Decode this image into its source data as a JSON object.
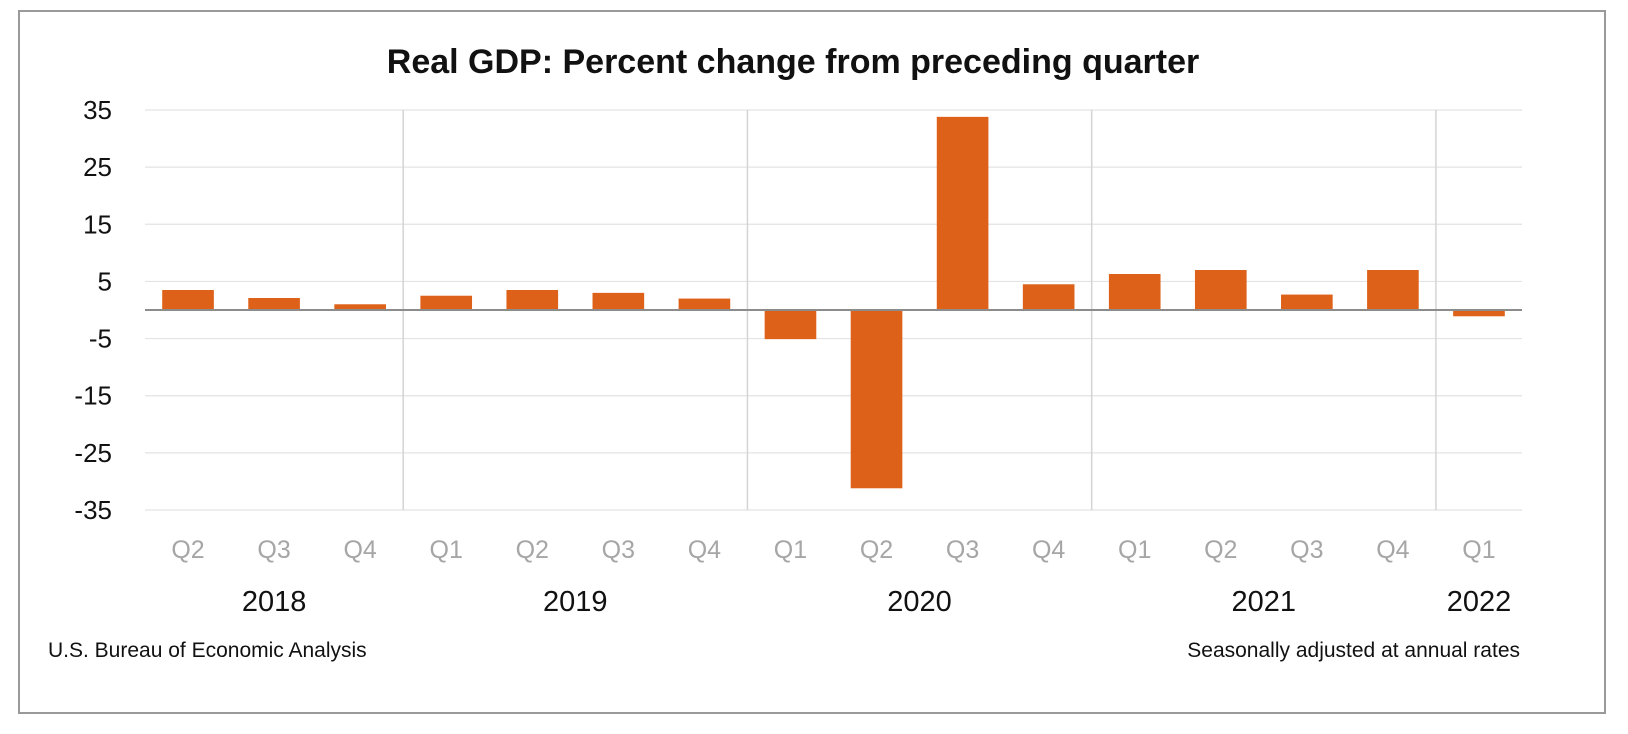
{
  "chart_data": {
    "type": "bar",
    "title": "Real GDP:  Percent change from preceding quarter",
    "xlabel": "",
    "ylabel": "",
    "ylim": [
      -35,
      35
    ],
    "yticks": [
      35,
      25,
      15,
      5,
      -5,
      -15,
      -25,
      -35
    ],
    "grid": "horizontal",
    "categories": [
      "Q2",
      "Q3",
      "Q4",
      "Q1",
      "Q2",
      "Q3",
      "Q4",
      "Q1",
      "Q2",
      "Q3",
      "Q4",
      "Q1",
      "Q2",
      "Q3",
      "Q4",
      "Q1"
    ],
    "values": [
      3.5,
      2.1,
      1.0,
      2.5,
      3.5,
      3.0,
      2.0,
      -5.1,
      -31.2,
      33.8,
      4.5,
      6.3,
      7.0,
      2.7,
      7.0,
      -1.1
    ],
    "year_groups": [
      {
        "label": "2018",
        "start": 0,
        "end": 2
      },
      {
        "label": "2019",
        "start": 3,
        "end": 6
      },
      {
        "label": "2020",
        "start": 7,
        "end": 10
      },
      {
        "label": "2021",
        "start": 11,
        "end": 14
      },
      {
        "label": "2022",
        "start": 15,
        "end": 15
      }
    ],
    "bar_color": "#dd6118",
    "source_note": "U.S. Bureau of Economic  Analysis",
    "rate_note": "Seasonally adjusted  at annual rates"
  }
}
